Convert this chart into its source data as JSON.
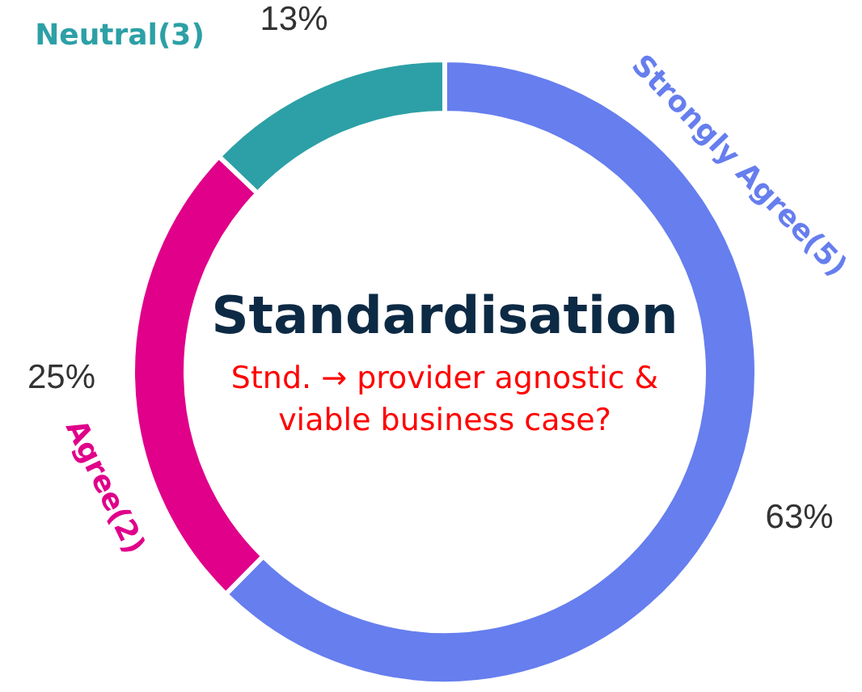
{
  "chart_data": {
    "type": "donut",
    "title": "Standardisation",
    "annotations": [
      "Stnd. → provider agnostic &\nviable business case?"
    ],
    "categories": [
      "Strongly Agree(5)",
      "Agree(2)",
      "Neutral(3)"
    ],
    "values": [
      63,
      25,
      13
    ],
    "value_labels": [
      "63%",
      "25%",
      "13%"
    ],
    "colors": [
      "#667eee",
      "#e0008a",
      "#2ca0a6"
    ]
  }
}
